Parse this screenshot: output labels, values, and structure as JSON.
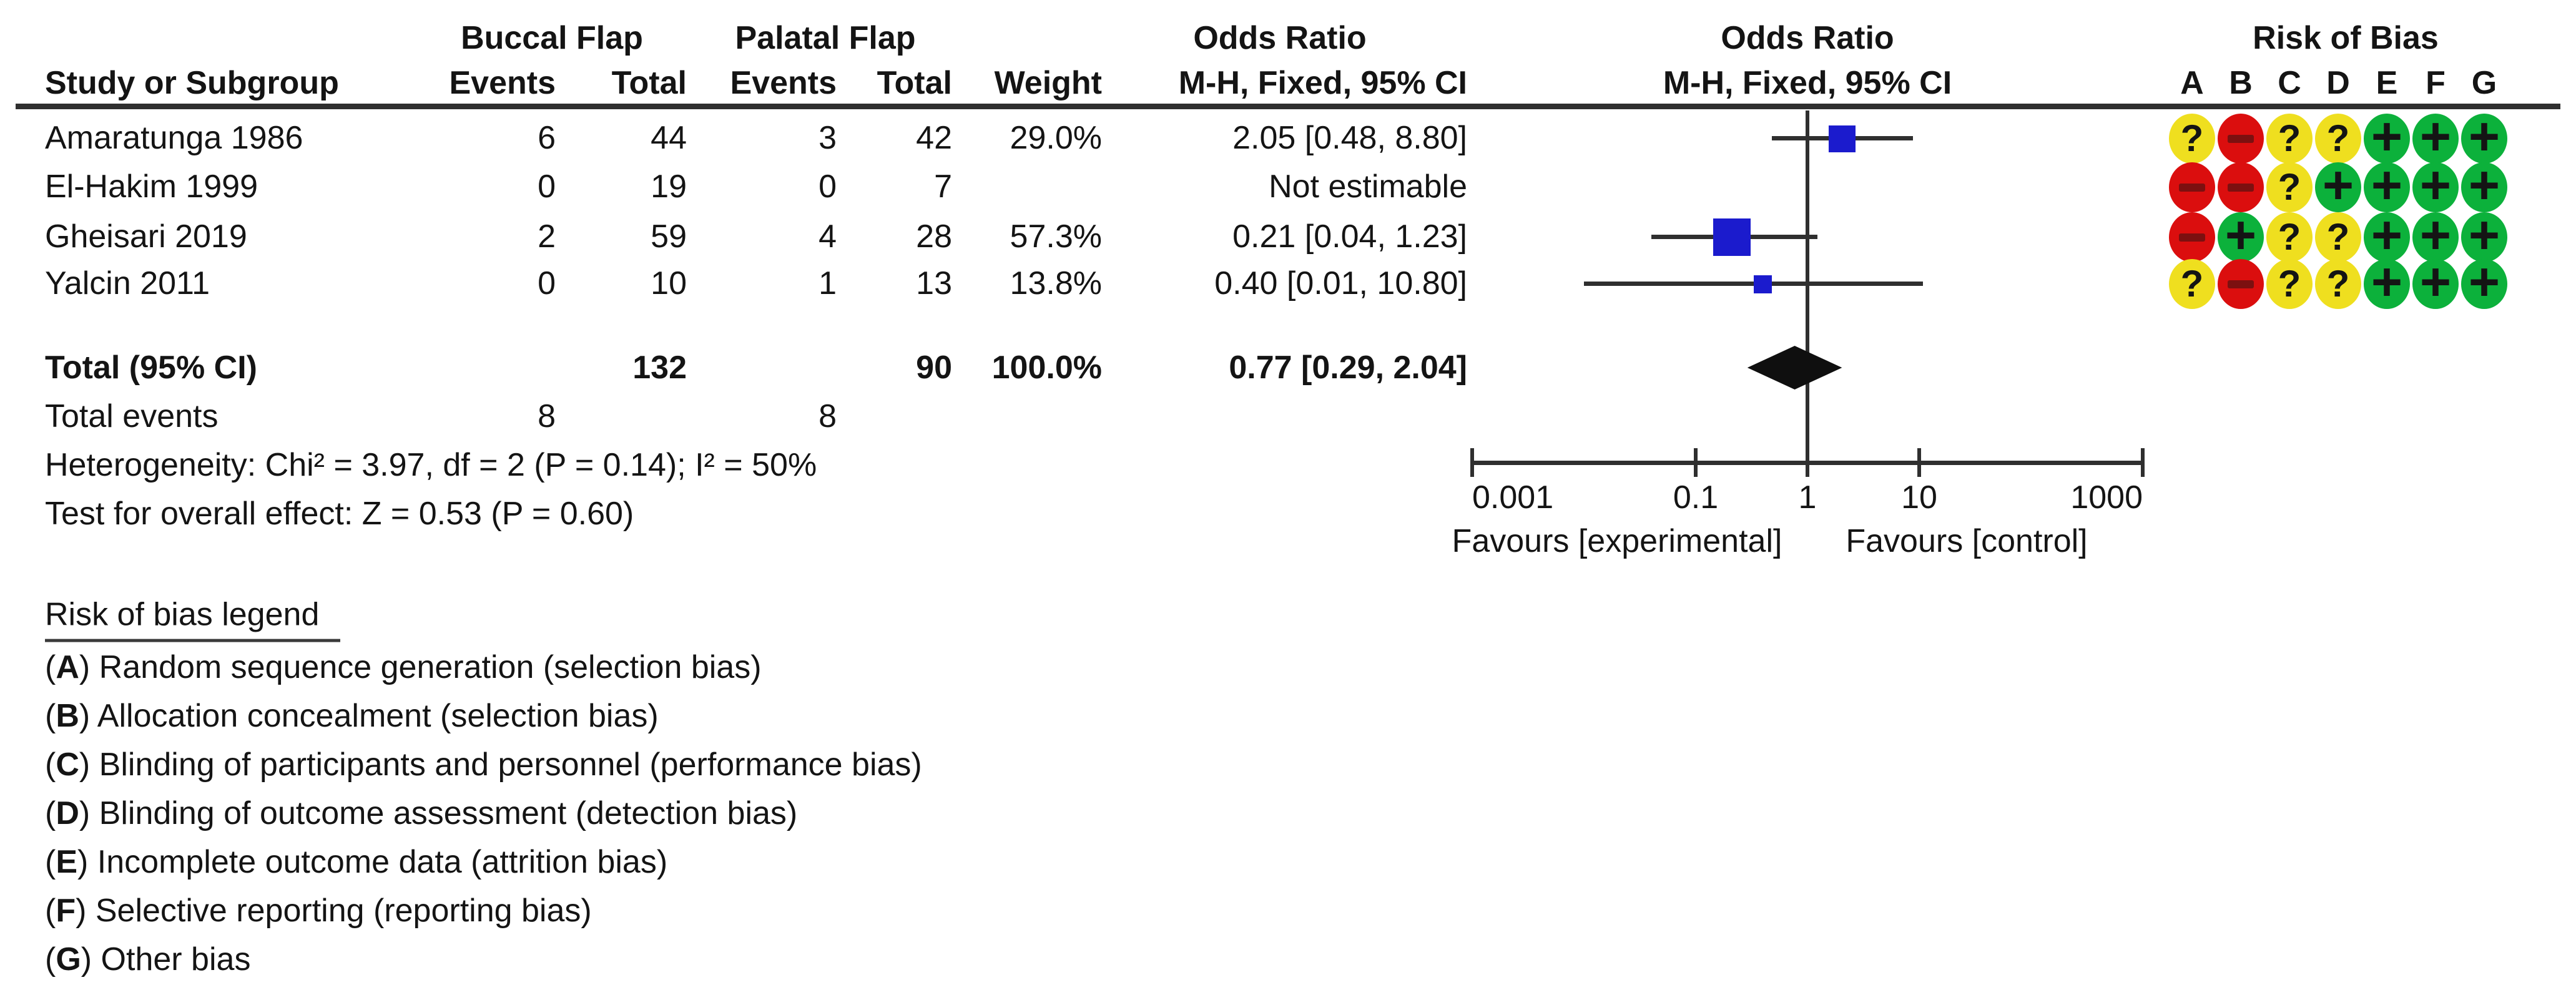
{
  "header": {
    "group1": "Buccal Flap",
    "group2": "Palatal Flap",
    "or_header_1": "Odds Ratio",
    "or_header_2": "Odds Ratio",
    "rob_header": "Risk of Bias",
    "col_study": "Study or Subgroup",
    "col_events": "Events",
    "col_total": "Total",
    "col_weight": "Weight",
    "col_mh": "M-H, Fixed, 95% CI",
    "rob_letters": [
      "A",
      "B",
      "C",
      "D",
      "E",
      "F",
      "G"
    ]
  },
  "studies": [
    {
      "name": "Amaratunga 1986",
      "events1": "6",
      "total1": "44",
      "events2": "3",
      "total2": "42",
      "weight": "29.0%",
      "or_text": "2.05 [0.48, 8.80]",
      "or": 2.05,
      "ci_low": 0.48,
      "ci_high": 8.8,
      "weight_pct": 29.0,
      "estimable": true,
      "rob": [
        "unclear",
        "high",
        "unclear",
        "unclear",
        "low",
        "low",
        "low"
      ]
    },
    {
      "name": "El-Hakim 1999",
      "events1": "0",
      "total1": "19",
      "events2": "0",
      "total2": "7",
      "weight": "",
      "or_text": "Not estimable",
      "or": null,
      "ci_low": null,
      "ci_high": null,
      "weight_pct": null,
      "estimable": false,
      "rob": [
        "high",
        "high",
        "unclear",
        "low",
        "low",
        "low",
        "low"
      ]
    },
    {
      "name": "Gheisari 2019",
      "events1": "2",
      "total1": "59",
      "events2": "4",
      "total2": "28",
      "weight": "57.3%",
      "or_text": "0.21 [0.04, 1.23]",
      "or": 0.21,
      "ci_low": 0.04,
      "ci_high": 1.23,
      "weight_pct": 57.3,
      "estimable": true,
      "rob": [
        "high",
        "low",
        "unclear",
        "unclear",
        "low",
        "low",
        "low"
      ]
    },
    {
      "name": "Yalcin 2011",
      "events1": "0",
      "total1": "10",
      "events2": "1",
      "total2": "13",
      "weight": "13.8%",
      "or_text": "0.40 [0.01, 10.80]",
      "or": 0.4,
      "ci_low": 0.01,
      "ci_high": 10.8,
      "weight_pct": 13.8,
      "estimable": true,
      "rob": [
        "unclear",
        "high",
        "unclear",
        "unclear",
        "low",
        "low",
        "low"
      ]
    }
  ],
  "total": {
    "label": "Total (95% CI)",
    "total1": "132",
    "total2": "90",
    "weight": "100.0%",
    "or_text": "0.77 [0.29, 2.04]",
    "or": 0.77,
    "ci_low": 0.29,
    "ci_high": 2.04
  },
  "total_events": {
    "label": "Total events",
    "events1": "8",
    "events2": "8"
  },
  "heterogeneity": "Heterogeneity: Chi² = 3.97, df = 2 (P = 0.14); I² = 50%",
  "overall_effect": "Test for overall effect: Z = 0.53 (P = 0.60)",
  "axis": {
    "scale": "log10",
    "ticks": [
      "0.001",
      "0.1",
      "1",
      "10",
      "1000"
    ],
    "tick_values": [
      0.001,
      0.1,
      1,
      10,
      1000
    ],
    "favours_left": "Favours [experimental]",
    "favours_right": "Favours [control]"
  },
  "rob_legend": {
    "title": "Risk of bias legend",
    "items": [
      {
        "letter": "A",
        "text": "Random sequence generation (selection bias)"
      },
      {
        "letter": "B",
        "text": "Allocation concealment (selection bias)"
      },
      {
        "letter": "C",
        "text": "Blinding of participants and personnel (performance bias)"
      },
      {
        "letter": "D",
        "text": "Blinding of outcome assessment (detection bias)"
      },
      {
        "letter": "E",
        "text": "Incomplete outcome data (attrition bias)"
      },
      {
        "letter": "F",
        "text": "Selective reporting (reporting bias)"
      },
      {
        "letter": "G",
        "text": "Other bias"
      }
    ]
  },
  "rob_symbols": {
    "low": "+",
    "high": "−",
    "unclear": "?"
  },
  "colors": {
    "marker_blue": "#1b1bcd",
    "diamond_black": "#0f0f0f",
    "line": "#2f2f2f",
    "rob_low": "#0cb13b",
    "rob_high": "#db0e0e",
    "rob_unclear": "#efdf1f",
    "rob_minus_bar": "#7c1010"
  },
  "chart_data": {
    "type": "scatter",
    "variant": "forest_plot_meta_analysis",
    "effect_measure": "Odds Ratio (M-H, Fixed, 95% CI)",
    "x_scale": "log10",
    "xlim": [
      0.001,
      1000
    ],
    "x_ticks": [
      0.001,
      0.1,
      1,
      10,
      1000
    ],
    "no_effect_line": 1,
    "studies": [
      {
        "name": "Amaratunga 1986",
        "or": 2.05,
        "ci": [
          0.48,
          8.8
        ],
        "weight_pct": 29.0
      },
      {
        "name": "El-Hakim 1999",
        "or": null,
        "ci": null,
        "weight_pct": null,
        "note": "Not estimable"
      },
      {
        "name": "Gheisari 2019",
        "or": 0.21,
        "ci": [
          0.04,
          1.23
        ],
        "weight_pct": 57.3
      },
      {
        "name": "Yalcin 2011",
        "or": 0.4,
        "ci": [
          0.01,
          10.8
        ],
        "weight_pct": 13.8
      }
    ],
    "total": {
      "name": "Total (95% CI)",
      "or": 0.77,
      "ci": [
        0.29,
        2.04
      ],
      "weight_pct": 100.0
    },
    "heterogeneity": {
      "chi2": 3.97,
      "df": 2,
      "p": 0.14,
      "i2_pct": 50
    },
    "overall_effect": {
      "z": 0.53,
      "p": 0.6
    },
    "xlabel_left": "Favours [experimental]",
    "xlabel_right": "Favours [control]"
  }
}
